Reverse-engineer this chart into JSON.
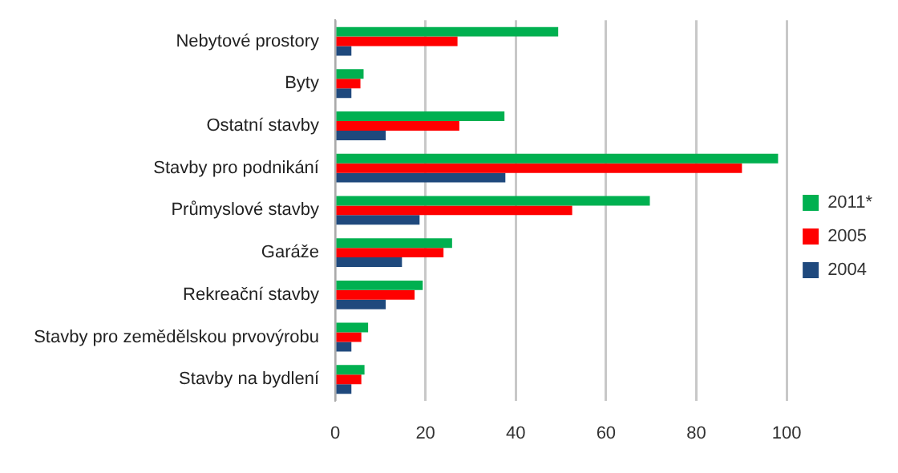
{
  "chart_data": {
    "type": "bar",
    "orientation": "horizontal",
    "categories": [
      "Nebytové prostory",
      "Byty",
      "Ostatní stavby",
      "Stavby pro podnikání",
      "Průmyslové stavby",
      "Garáže",
      "Rekreační stavby",
      "Stavby pro zemědělskou prvovýrobu",
      "Stavby na bydlení"
    ],
    "series": [
      {
        "name": "2011*",
        "color": "#00b050",
        "values": [
          49.4,
          6.3,
          37.5,
          98.1,
          69.7,
          25.9,
          19.4,
          7.3,
          6.5
        ]
      },
      {
        "name": "2005",
        "color": "#ff0000",
        "values": [
          27.1,
          5.6,
          27.5,
          90.1,
          52.5,
          24.0,
          17.6,
          5.8,
          5.8
        ]
      },
      {
        "name": "2004",
        "color": "#1f497d",
        "values": [
          3.6,
          3.6,
          11.2,
          37.7,
          18.7,
          14.8,
          11.2,
          3.6,
          3.6
        ]
      }
    ],
    "xlim": [
      0,
      100
    ],
    "xticks": [
      0,
      20,
      40,
      60,
      80,
      100
    ],
    "grid": "x",
    "legend": "right"
  }
}
